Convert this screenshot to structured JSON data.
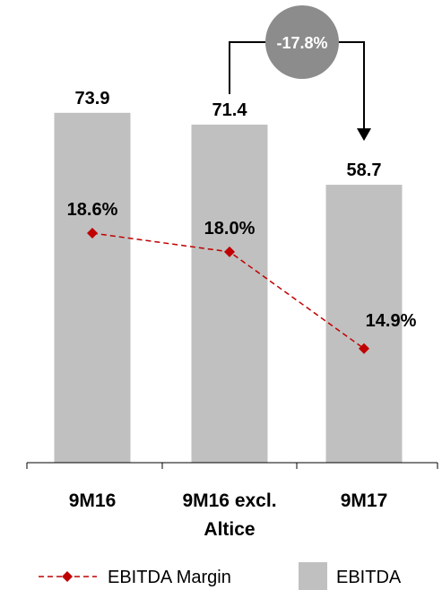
{
  "chart_data": {
    "type": "bar",
    "categories": [
      [
        "9M16"
      ],
      [
        "9M16 excl.",
        "Altice"
      ],
      [
        "9M17"
      ]
    ],
    "series": [
      {
        "name": "EBITDA",
        "type": "bar",
        "values": [
          73.9,
          71.4,
          58.7
        ],
        "labels": [
          "73.9",
          "71.4",
          "58.7"
        ],
        "color": "#c0c0c0"
      },
      {
        "name": "EBITDA Margin",
        "type": "line",
        "values": [
          18.6,
          18.0,
          14.9
        ],
        "labels": [
          "18.6%",
          "18.0%",
          "14.9%"
        ],
        "color": "#c00000",
        "marker": "diamond",
        "line_style": "dashed"
      }
    ],
    "annotation": {
      "text": "-17.8%",
      "from_category": 1,
      "to_category": 2,
      "color": "#8c8c8c"
    },
    "legend": {
      "position": "bottom",
      "entries": [
        "EBITDA Margin",
        "EBITDA"
      ]
    },
    "title": "",
    "xlabel": "",
    "ylabel": "",
    "grid": false
  }
}
